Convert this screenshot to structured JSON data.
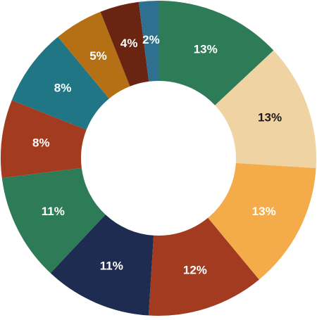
{
  "chart_data": {
    "type": "donut",
    "values": [
      13,
      13,
      13,
      12,
      11,
      11,
      8,
      8,
      5,
      4,
      2
    ],
    "value_labels": [
      "13%",
      "13%",
      "13%",
      "12%",
      "11%",
      "11%",
      "8%",
      "8%",
      "5%",
      "4%",
      "2%"
    ],
    "colors": [
      "#2e7b57",
      "#f0d3a3",
      "#f4ab4a",
      "#a23b1f",
      "#1e2c52",
      "#2e7b57",
      "#a23b1f",
      "#217686",
      "#b56f14",
      "#6a2412",
      "#2f6f8f"
    ],
    "label_colors": [
      "#ffffff",
      "#1a1a1a",
      "#ffffff",
      "#ffffff",
      "#ffffff",
      "#ffffff",
      "#ffffff",
      "#ffffff",
      "#ffffff",
      "#ffffff",
      "#ffffff"
    ]
  }
}
